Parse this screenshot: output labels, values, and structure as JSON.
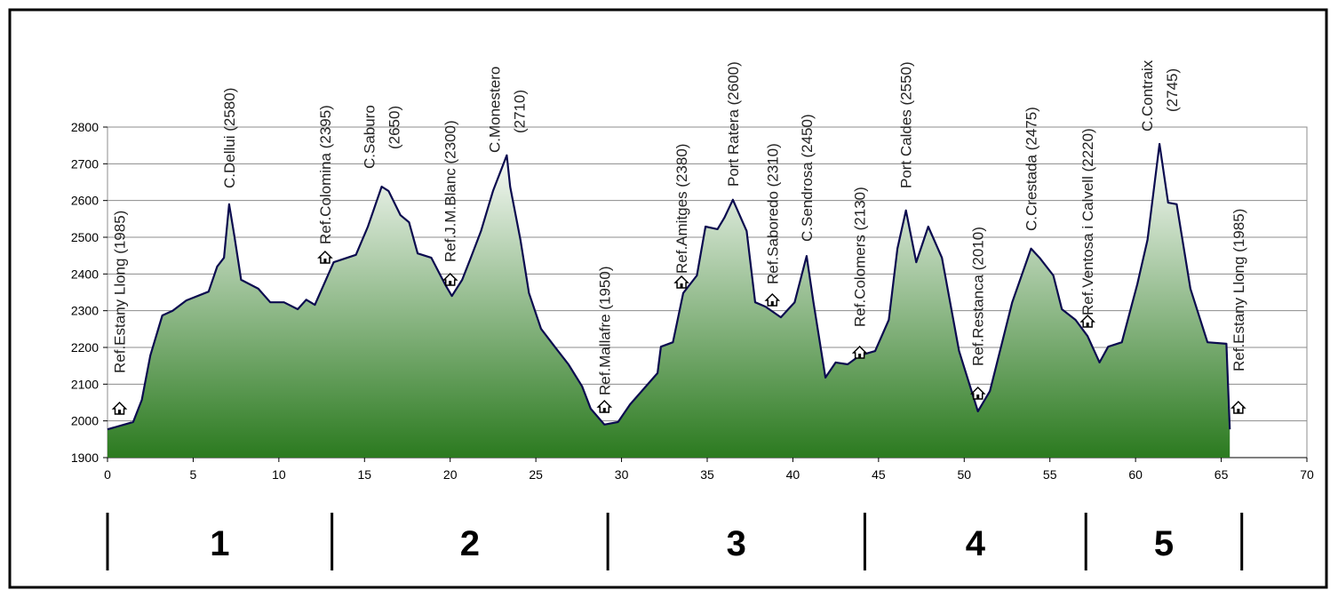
{
  "chart_data": {
    "type": "area",
    "title": "",
    "xlabel": "",
    "ylabel": "",
    "xlim": [
      0,
      70
    ],
    "ylim": [
      1900,
      2800
    ],
    "x_ticks": [
      0,
      5,
      10,
      15,
      20,
      25,
      30,
      35,
      40,
      45,
      50,
      55,
      60,
      65,
      70
    ],
    "y_ticks": [
      1900,
      2000,
      2100,
      2200,
      2300,
      2400,
      2500,
      2600,
      2700,
      2800
    ],
    "grid": "horizontal",
    "colors": {
      "line": "#0b0b4f",
      "fill_top": "#ffffff",
      "fill_bottom": "#2b7a1f",
      "grid": "#8c8c8c"
    },
    "profile": {
      "x": [
        0,
        1.5,
        2.0,
        2.5,
        3.2,
        3.8,
        4.6,
        5.9,
        6.4,
        6.8,
        7.1,
        7.4,
        7.8,
        8.8,
        9.5,
        10.3,
        11.1,
        11.6,
        12.1,
        13.2,
        14.5,
        15.2,
        16.0,
        16.4,
        17.1,
        17.6,
        18.1,
        18.9,
        19.7,
        20.1,
        20.7,
        21.2,
        21.8,
        22.5,
        23.3,
        23.5,
        24.1,
        24.6,
        25.3,
        26.1,
        26.9,
        27.7,
        28.2,
        29.0,
        29.8,
        30.5,
        32.1,
        32.3,
        33.0,
        33.6,
        34.4,
        34.9,
        35.6,
        36.0,
        36.5,
        37.3,
        37.8,
        38.4,
        39.3,
        40.1,
        40.8,
        41.2,
        41.9,
        42.5,
        43.2,
        43.9,
        44.8,
        45.6,
        46.1,
        46.6,
        47.2,
        47.9,
        48.7,
        49.7,
        50.8,
        51.5,
        52.8,
        53.9,
        54.4,
        55.2,
        55.7,
        56.5,
        57.2,
        57.9,
        58.4,
        59.2,
        60.1,
        60.7,
        61.4,
        61.9,
        62.4,
        63.2,
        64.2,
        65.3,
        65.5
      ],
      "y": [
        1977,
        1997,
        2057,
        2178,
        2287,
        2300,
        2328,
        2352,
        2420,
        2444,
        2590,
        2505,
        2384,
        2360,
        2323,
        2323,
        2304,
        2330,
        2316,
        2432,
        2452,
        2529,
        2638,
        2626,
        2560,
        2541,
        2456,
        2444,
        2372,
        2340,
        2384,
        2444,
        2517,
        2626,
        2723,
        2638,
        2493,
        2348,
        2251,
        2202,
        2154,
        2094,
        2033,
        1990,
        1997,
        2045,
        2130,
        2202,
        2214,
        2348,
        2396,
        2529,
        2522,
        2553,
        2602,
        2517,
        2323,
        2311,
        2282,
        2323,
        2449,
        2323,
        2118,
        2159,
        2154,
        2178,
        2190,
        2275,
        2469,
        2573,
        2432,
        2529,
        2444,
        2190,
        2026,
        2081,
        2323,
        2469,
        2444,
        2396,
        2304,
        2275,
        2231,
        2159,
        2202,
        2214,
        2372,
        2493,
        2754,
        2594,
        2590,
        2360,
        2214,
        2210,
        1977
      ]
    },
    "annotations": [
      {
        "text": "Ref.Estany Llong (1985)",
        "km": 0.7,
        "hut": true
      },
      {
        "text": "C.Dellui (2580)",
        "km": 7.1,
        "hut": false
      },
      {
        "text": "Ref.Colomina (2395)",
        "km": 12.7,
        "hut": true
      },
      {
        "text": "C.Saburo",
        "text2": "(2650)",
        "km": 16.0,
        "hut": false
      },
      {
        "text": "Ref.J.M.Blanc (2300)",
        "km": 20.0,
        "hut": true
      },
      {
        "text": "C.Monestero",
        "text2": "(2710)",
        "km": 23.3,
        "hut": false
      },
      {
        "text": "Ref.Mallafre (1950)",
        "km": 29.0,
        "hut": true
      },
      {
        "text": "Ref.Amitges (2380)",
        "km": 33.5,
        "hut": true
      },
      {
        "text": "Port Ratera (2600)",
        "km": 36.5,
        "hut": false
      },
      {
        "text": "Ref.Saboredo (2310)",
        "km": 38.8,
        "hut": true
      },
      {
        "text": "C.Sendrosa (2450)",
        "km": 40.8,
        "hut": false
      },
      {
        "text": "Ref.Colomers (2130)",
        "km": 43.9,
        "hut": true
      },
      {
        "text": "Port Caldes (2550)",
        "km": 46.6,
        "hut": false
      },
      {
        "text": "Ref.Restanca (2010)",
        "km": 50.8,
        "hut": true
      },
      {
        "text": "C.Crestada (2475)",
        "km": 53.9,
        "hut": false
      },
      {
        "text": "Ref.Ventosa i Calvell (2220)",
        "km": 57.2,
        "hut": true
      },
      {
        "text": "C.Contraix",
        "text2": "(2745)",
        "km": 61.4,
        "hut": false
      },
      {
        "text": "Ref.Estany Llong (1985)",
        "km": 66.0,
        "hut": true
      }
    ],
    "stages": {
      "labels": [
        "1",
        "2",
        "3",
        "4",
        "5"
      ],
      "boundaries_km": [
        0,
        13.1,
        29.2,
        44.2,
        57.1,
        66.2
      ]
    }
  }
}
